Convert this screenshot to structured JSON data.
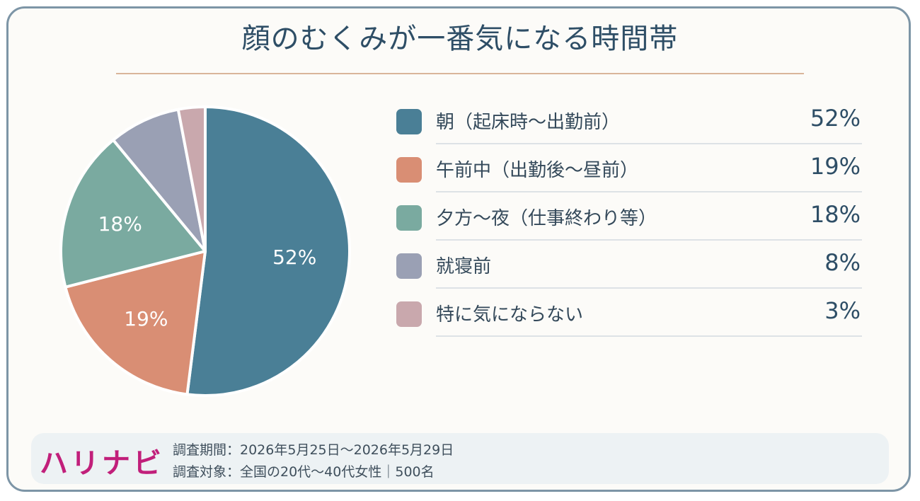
{
  "chart_data": {
    "type": "pie",
    "title": "顔のむくみが一番気になる時間帯",
    "categories": [
      "朝（起床時〜出勤前）",
      "午前中（出勤後〜昼前）",
      "夕方〜夜（仕事終わり等）",
      "就寝前",
      "特に気にならない"
    ],
    "values": [
      52,
      19,
      18,
      8,
      3
    ],
    "value_labels": [
      "52%",
      "19%",
      "18%",
      "8%",
      "3%"
    ],
    "colors": [
      "#4a7f96",
      "#d98e74",
      "#7aaaa0",
      "#9aa0b4",
      "#c9a8ad"
    ],
    "start": "12 o'clock",
    "direction": "clockwise",
    "legend_position": "right"
  },
  "footer": {
    "brand": "ハリナビ",
    "brand_color": "#c11f7a",
    "period": "調査期間：2026年5月25日〜2026年5月29日",
    "target": "調査対象：全国の20代〜40代女性｜500名"
  }
}
